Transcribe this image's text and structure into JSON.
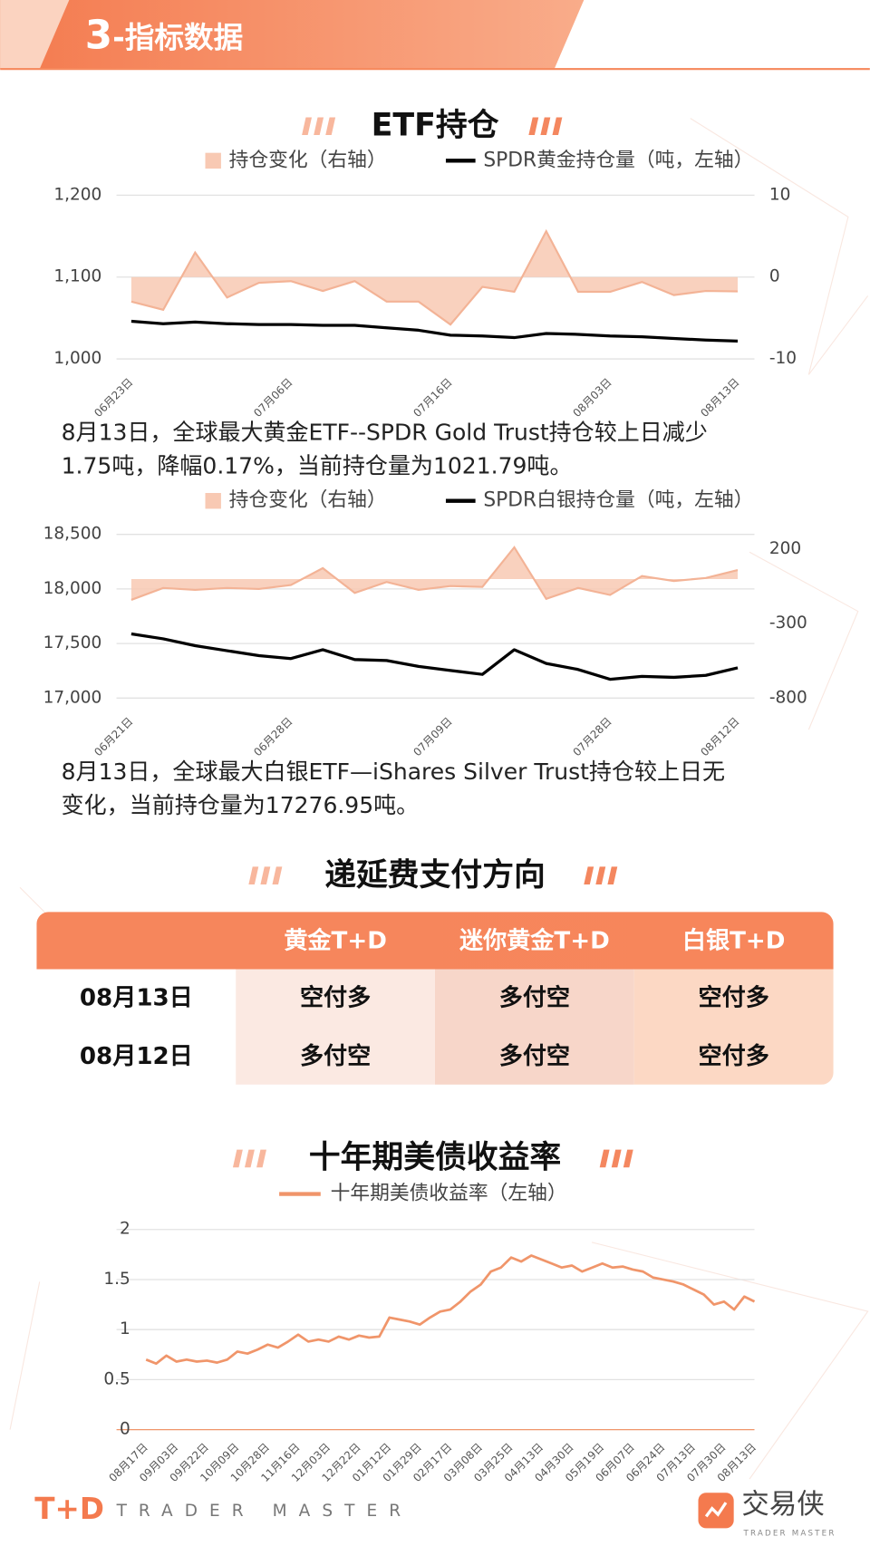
{
  "header": {
    "number": "3",
    "title": "-指标数据"
  },
  "chart_data": [
    {
      "type": "line",
      "title": "ETF持仓",
      "categories": [
        "06月23日",
        null,
        null,
        null,
        null,
        "07月06日",
        null,
        null,
        null,
        null,
        "07月16日",
        null,
        null,
        null,
        null,
        "08月03日",
        null,
        null,
        null,
        "08月13日"
      ],
      "series": [
        {
          "name": "持仓变化（右轴）",
          "style": "area",
          "axis": "y2",
          "color": "#f8c9b3",
          "values": [
            -3,
            -4,
            3,
            -2.5,
            -0.7,
            -0.5,
            -1.7,
            -0.5,
            -3,
            -3,
            -5.8,
            -1.2,
            -1.8,
            5.6,
            -1.8,
            -1.8,
            -0.6,
            -2.2,
            -1.7,
            -1.75
          ]
        },
        {
          "name": "SPDR黄金持仓量（吨，左轴）",
          "style": "line",
          "color": "#000000",
          "values": [
            1046,
            1043,
            1045,
            1043,
            1042,
            1042,
            1041,
            1041,
            1038,
            1035,
            1029,
            1028,
            1026,
            1031,
            1030,
            1028,
            1027,
            1025,
            1023,
            1021.79
          ]
        }
      ],
      "ylim": [
        1000,
        1200
      ],
      "yticks": [
        {
          "value": 1000,
          "label": "1,000"
        },
        {
          "value": 1100,
          "label": "1,100"
        },
        {
          "value": 1200,
          "label": "1,200"
        }
      ],
      "y2lim": [
        -10,
        10
      ],
      "y2ticks": [
        -10,
        0,
        10
      ],
      "grid": true
    },
    {
      "type": "line",
      "categories": [
        "06月21日",
        null,
        null,
        null,
        null,
        "06月28日",
        null,
        null,
        null,
        null,
        "07月09日",
        null,
        null,
        null,
        null,
        "07月28日",
        null,
        null,
        null,
        "08月12日"
      ],
      "series": [
        {
          "name": "持仓变化（右轴）",
          "style": "area",
          "axis": "y2",
          "color": "#f8c9b3",
          "values": [
            -140,
            -60,
            -73,
            -60,
            -67,
            -40,
            73,
            -93,
            -20,
            -73,
            -47,
            -53,
            213,
            -133,
            -60,
            -107,
            20,
            -13,
            7,
            60
          ]
        },
        {
          "name": "SPDR白银持仓量（吨，左轴）",
          "style": "line",
          "color": "#000000",
          "values": [
            17588,
            17543,
            17480,
            17434,
            17389,
            17362,
            17443,
            17353,
            17344,
            17290,
            17253,
            17217,
            17443,
            17317,
            17262,
            17172,
            17199,
            17190,
            17208,
            17276.95
          ]
        }
      ],
      "ylim": [
        17000,
        18500
      ],
      "yticks": [
        {
          "value": 17000,
          "label": "17,000"
        },
        {
          "value": 17500,
          "label": "17,500"
        },
        {
          "value": 18000,
          "label": "18,000"
        },
        {
          "value": 18500,
          "label": "18,500"
        }
      ],
      "y2lim": [
        -800,
        300
      ],
      "y2ticks": [
        -800,
        -300,
        200
      ],
      "grid": true
    },
    {
      "type": "line",
      "title": "十年期美债收益率",
      "categories": [
        "08月17日",
        null,
        null,
        "09月03日",
        null,
        null,
        "09月22日",
        null,
        null,
        "10月09日",
        null,
        null,
        "10月28日",
        null,
        null,
        "11月16日",
        null,
        null,
        "12月03日",
        null,
        null,
        "12月22日",
        null,
        null,
        "01月12日",
        null,
        null,
        "01月29日",
        null,
        null,
        "02月17日",
        null,
        null,
        "03月08日",
        null,
        null,
        "03月25日",
        null,
        null,
        "04月13日",
        null,
        null,
        "04月30日",
        null,
        null,
        "05月19日",
        null,
        null,
        "06月07日",
        null,
        null,
        "06月24日",
        null,
        null,
        "07月13日",
        null,
        null,
        "07月30日",
        null,
        null,
        "08月13日"
      ],
      "series": [
        {
          "name": "十年期美债收益率（左轴）",
          "style": "line",
          "color": "#f0956a",
          "values": [
            0.7,
            0.66,
            0.74,
            0.68,
            0.7,
            0.68,
            0.69,
            0.67,
            0.7,
            0.78,
            0.76,
            0.8,
            0.85,
            0.82,
            0.88,
            0.95,
            0.88,
            0.9,
            0.88,
            0.93,
            0.9,
            0.94,
            0.92,
            0.93,
            1.12,
            1.1,
            1.08,
            1.05,
            1.12,
            1.18,
            1.2,
            1.28,
            1.38,
            1.45,
            1.58,
            1.62,
            1.72,
            1.68,
            1.74,
            1.7,
            1.66,
            1.62,
            1.64,
            1.58,
            1.62,
            1.66,
            1.62,
            1.63,
            1.6,
            1.58,
            1.52,
            1.5,
            1.48,
            1.45,
            1.4,
            1.35,
            1.25,
            1.28,
            1.2,
            1.33,
            1.28
          ]
        }
      ],
      "ylim": [
        0,
        2
      ],
      "yticks": [
        0,
        0.5,
        1,
        1.5,
        2
      ],
      "grid": true
    }
  ],
  "notes": [
    {
      "lines": [
        "8月13日，全球最大黄金ETF--SPDR Gold Trust持仓较上日减少",
        "1.75吨，降幅0.17%，当前持仓量为1021.79吨。"
      ]
    },
    {
      "lines": [
        "8月13日，全球最大白银ETF—iShares Silver Trust持仓较上日无",
        "变化，当前持仓量为17276.95吨。"
      ]
    }
  ],
  "table": {
    "title": "递延费支付方向",
    "columns": [
      "黄金T+D",
      "迷你黄金T+D",
      "白银T+D"
    ],
    "rows": [
      {
        "date": "08月13日",
        "cells": [
          "空付多",
          "多付空",
          "空付多"
        ]
      },
      {
        "date": "08月12日",
        "cells": [
          "多付空",
          "多付空",
          "空付多"
        ]
      }
    ]
  },
  "footer": {
    "logo": "T+D",
    "slogan": "TRADER MASTER",
    "brand": "交易侠",
    "brand_sub": "TRADER MASTER"
  }
}
